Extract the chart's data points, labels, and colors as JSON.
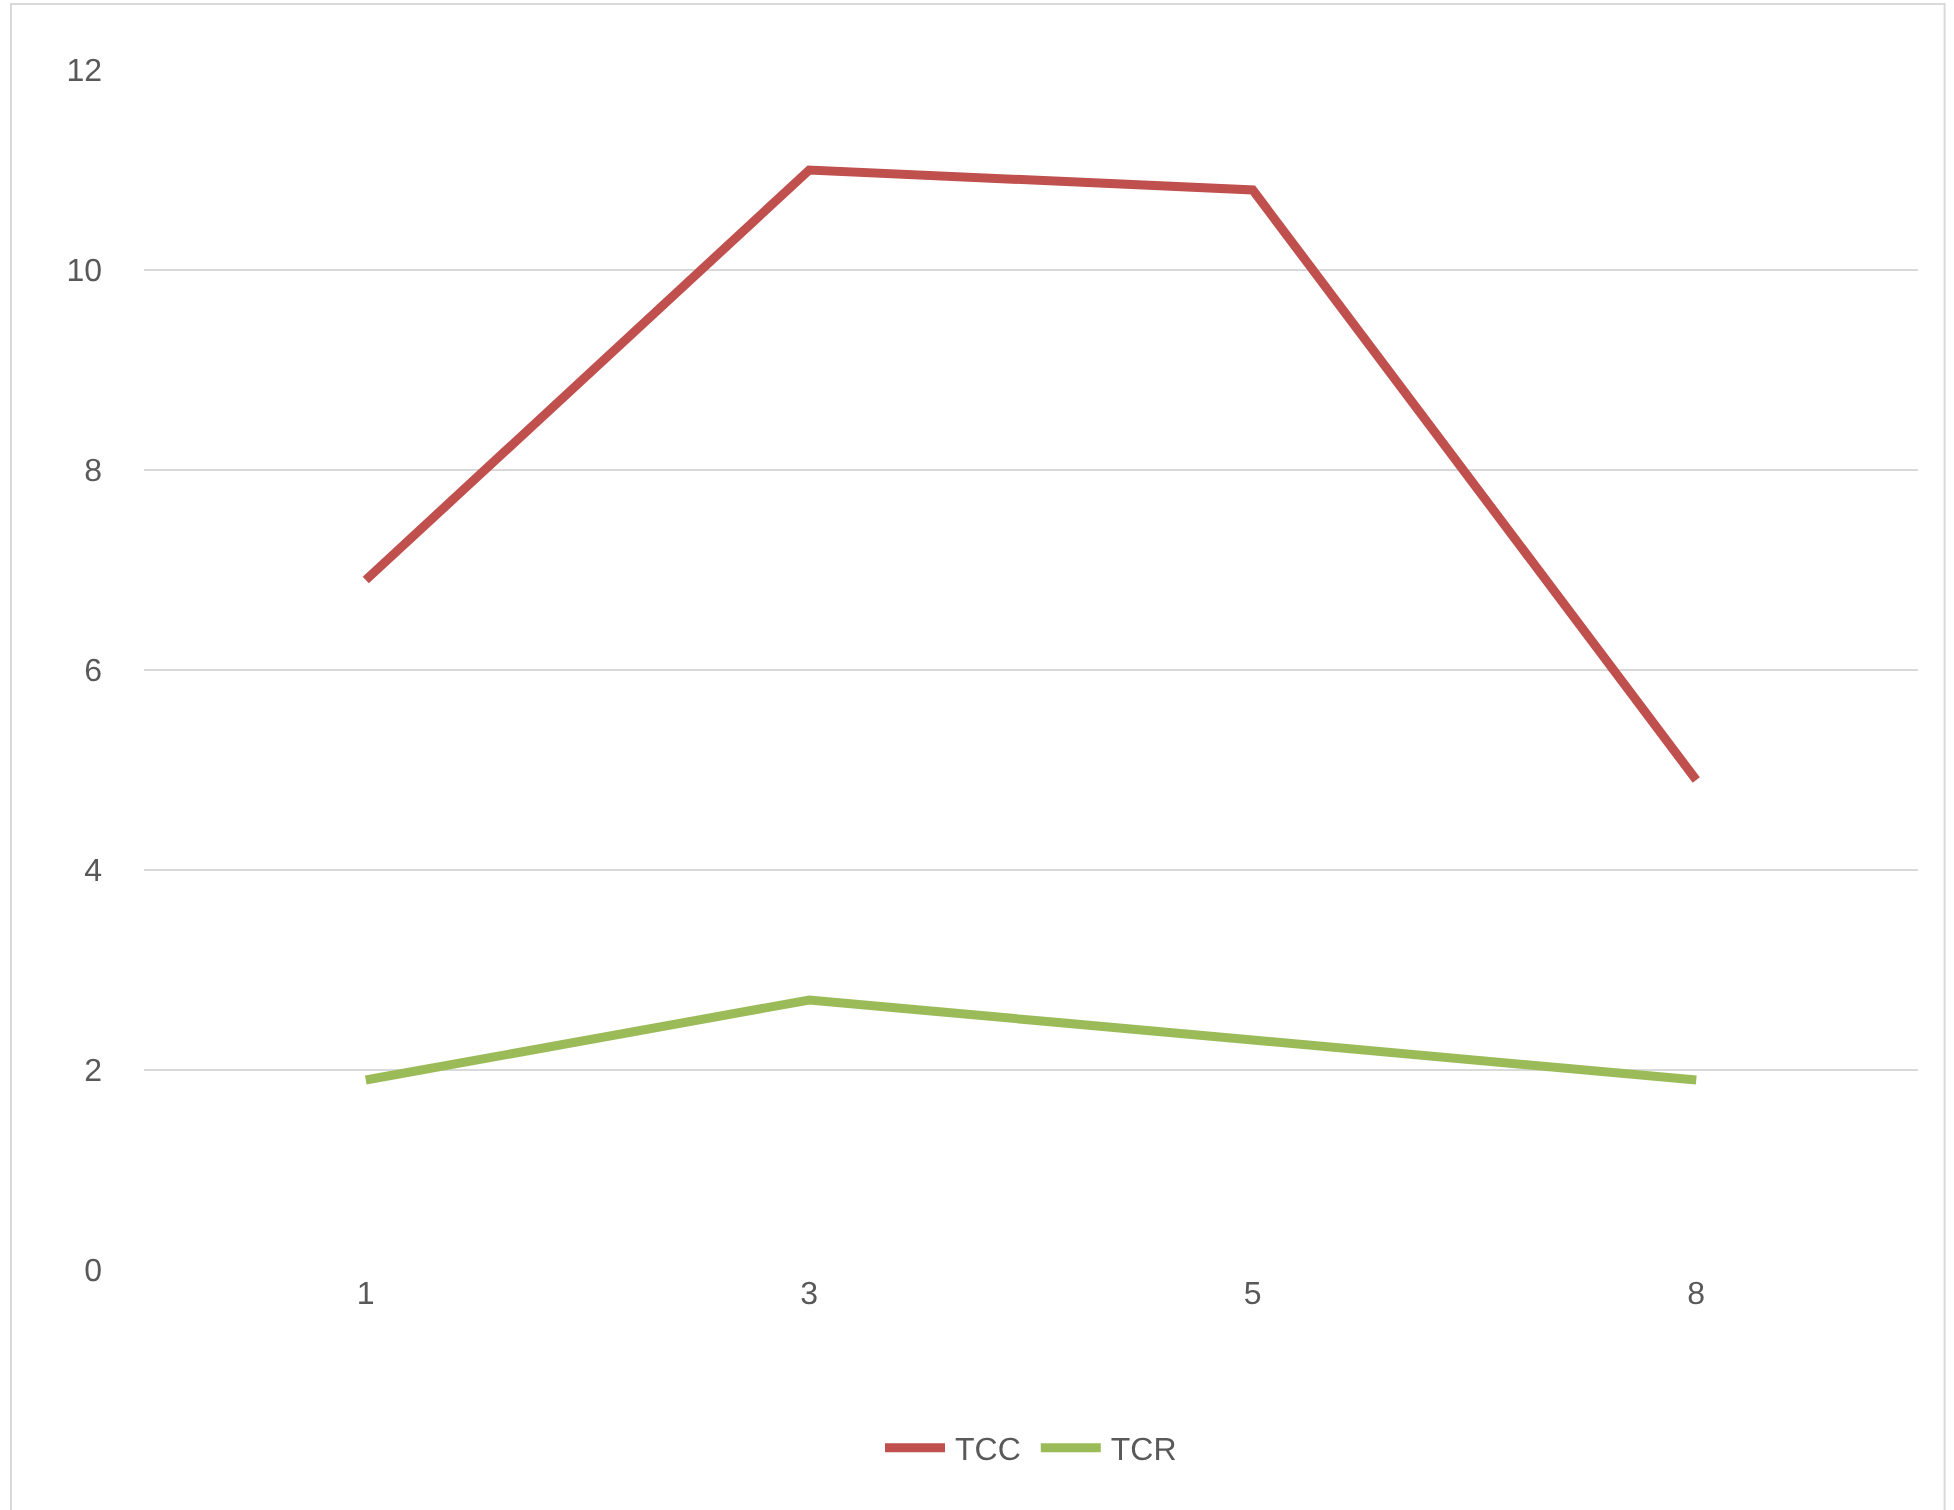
{
  "chart_data": {
    "type": "line",
    "categories": [
      "1",
      "3",
      "5",
      "8"
    ],
    "series": [
      {
        "name": "TCC",
        "color": "#c0504d",
        "values": [
          6.9,
          11.0,
          10.8,
          4.9
        ]
      },
      {
        "name": "TCR",
        "color": "#9bbb59",
        "values": [
          1.9,
          2.7,
          2.3,
          1.9
        ]
      }
    ],
    "ylim": [
      0,
      12
    ],
    "yticks": [
      0,
      2,
      4,
      6,
      8,
      10,
      12
    ],
    "grid": "y",
    "legend": "bottom",
    "marker": "none",
    "line_style": "solid"
  }
}
